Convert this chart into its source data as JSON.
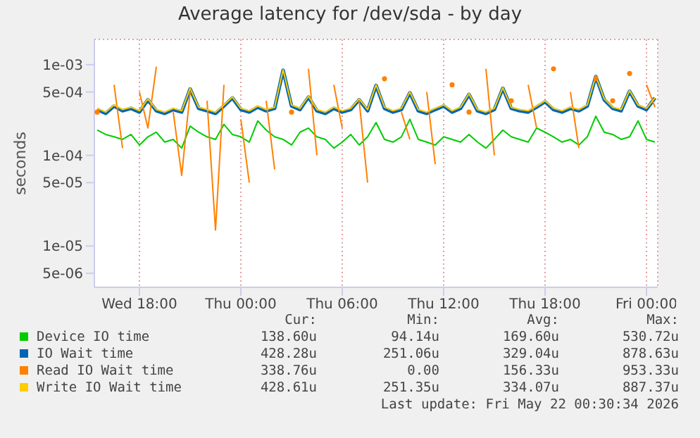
{
  "chart_data": {
    "type": "line",
    "title": "Average latency for /dev/sda - by day",
    "ylabel": "seconds",
    "log": true,
    "grid": true,
    "legend": "bottom",
    "x": [
      "2026-05-20T15:30",
      "2026-05-20T16:00",
      "2026-05-20T16:30",
      "2026-05-20T17:00",
      "2026-05-20T17:30",
      "2026-05-20T18:00",
      "2026-05-20T18:30",
      "2026-05-20T19:00",
      "2026-05-20T19:30",
      "2026-05-20T20:00",
      "2026-05-20T20:30",
      "2026-05-20T21:00",
      "2026-05-20T21:30",
      "2026-05-20T22:00",
      "2026-05-20T22:30",
      "2026-05-20T23:00",
      "2026-05-20T23:30",
      "2026-05-21T00:00",
      "2026-05-21T00:30",
      "2026-05-21T01:00",
      "2026-05-21T01:30",
      "2026-05-21T02:00",
      "2026-05-21T02:30",
      "2026-05-21T03:00",
      "2026-05-21T03:30",
      "2026-05-21T04:00",
      "2026-05-21T04:30",
      "2026-05-21T05:00",
      "2026-05-21T05:30",
      "2026-05-21T06:00",
      "2026-05-21T06:30",
      "2026-05-21T07:00",
      "2026-05-21T07:30",
      "2026-05-21T08:00",
      "2026-05-21T08:30",
      "2026-05-21T09:00",
      "2026-05-21T09:30",
      "2026-05-21T10:00",
      "2026-05-21T10:30",
      "2026-05-21T11:00",
      "2026-05-21T11:30",
      "2026-05-21T12:00",
      "2026-05-21T12:30",
      "2026-05-21T13:00",
      "2026-05-21T13:30",
      "2026-05-21T14:00",
      "2026-05-21T14:30",
      "2026-05-21T15:00",
      "2026-05-21T15:30",
      "2026-05-21T16:00",
      "2026-05-21T16:30",
      "2026-05-21T17:00",
      "2026-05-21T17:30",
      "2026-05-21T18:00",
      "2026-05-21T18:30",
      "2026-05-21T19:00",
      "2026-05-21T19:30",
      "2026-05-21T20:00",
      "2026-05-21T20:30",
      "2026-05-21T21:00",
      "2026-05-21T21:30",
      "2026-05-21T22:00",
      "2026-05-21T22:30",
      "2026-05-21T23:00",
      "2026-05-21T23:30",
      "2026-05-22T00:00",
      "2026-05-22T00:30"
    ],
    "xlim": [
      "2026-05-20T15:20",
      "2026-05-22T00:40"
    ],
    "xticks": [
      {
        "value": "2026-05-20T18:00",
        "label": "Wed 18:00"
      },
      {
        "value": "2026-05-21T00:00",
        "label": "Thu 00:00"
      },
      {
        "value": "2026-05-21T06:00",
        "label": "Thu 06:00"
      },
      {
        "value": "2026-05-21T12:00",
        "label": "Thu 12:00"
      },
      {
        "value": "2026-05-21T18:00",
        "label": "Thu 18:00"
      },
      {
        "value": "2026-05-22T00:00",
        "label": "Fri 00:00"
      }
    ],
    "ylim": [
      3.5e-06,
      0.0019
    ],
    "yticks": [
      {
        "value": 5e-06,
        "label": "5e-06"
      },
      {
        "value": 1e-05,
        "label": "1e-05"
      },
      {
        "value": 5e-05,
        "label": "5e-05"
      },
      {
        "value": 0.0001,
        "label": "1e-04"
      },
      {
        "value": 0.0005,
        "label": "5e-04"
      },
      {
        "value": 0.001,
        "label": "1e-03"
      }
    ],
    "series": [
      {
        "name": "Device IO time",
        "color": "#00cc00",
        "values": [
          0.00019,
          0.00017,
          0.00016,
          0.00015,
          0.00017,
          0.00013,
          0.00016,
          0.00018,
          0.00014,
          0.00015,
          0.00012,
          0.00021,
          0.00018,
          0.00016,
          0.00015,
          0.00022,
          0.00017,
          0.00016,
          0.00014,
          0.00024,
          0.00019,
          0.00016,
          0.00015,
          0.00013,
          0.00018,
          0.0002,
          0.00016,
          0.00015,
          0.00012,
          0.00014,
          0.00017,
          0.00013,
          0.00016,
          0.00023,
          0.00015,
          0.00014,
          0.00016,
          0.00025,
          0.00015,
          0.00014,
          0.00013,
          0.00016,
          0.00015,
          0.00014,
          0.00017,
          0.00014,
          0.00012,
          0.00015,
          0.00019,
          0.00016,
          0.00015,
          0.00014,
          0.0002,
          0.00018,
          0.00016,
          0.00014,
          0.00015,
          0.00013,
          0.00016,
          0.00027,
          0.00018,
          0.00017,
          0.00015,
          0.00016,
          0.00024,
          0.00015,
          0.00014
        ]
      },
      {
        "name": "IO Wait time",
        "color": "#0066b3",
        "values": [
          0.00032,
          0.00029,
          0.00035,
          0.00031,
          0.00033,
          0.0003,
          0.00041,
          0.00031,
          0.00029,
          0.00032,
          0.0003,
          0.00054,
          0.00033,
          0.00031,
          0.00029,
          0.00035,
          0.00043,
          0.00032,
          0.0003,
          0.00034,
          0.00031,
          0.00033,
          0.00087,
          0.00035,
          0.00032,
          0.00044,
          0.00031,
          0.00029,
          0.00033,
          0.0003,
          0.00032,
          0.00041,
          0.00031,
          0.00059,
          0.00033,
          0.0003,
          0.00032,
          0.00049,
          0.00031,
          0.00029,
          0.00032,
          0.00035,
          0.0003,
          0.00033,
          0.00047,
          0.00031,
          0.00029,
          0.00032,
          0.00055,
          0.00033,
          0.00031,
          0.0003,
          0.00034,
          0.00039,
          0.00032,
          0.0003,
          0.00033,
          0.00031,
          0.00035,
          0.00074,
          0.00041,
          0.00033,
          0.00031,
          0.00051,
          0.00035,
          0.00032,
          0.00043
        ]
      },
      {
        "name": "Read IO Wait time",
        "color": "#ff8000",
        "values": [
          0.0003,
          null,
          0.0006,
          0.00012,
          null,
          0.0005,
          0.0002,
          0.00095,
          null,
          0.0003,
          6e-05,
          0.0005,
          null,
          0.0004,
          1.5e-05,
          0.0006,
          null,
          0.00025,
          5e-05,
          null,
          0.0004,
          7e-05,
          null,
          0.0003,
          null,
          0.0009,
          0.0001,
          null,
          0.0006,
          0.0002,
          null,
          0.0004,
          5e-05,
          null,
          0.0007,
          null,
          0.0003,
          0.00015,
          null,
          0.0005,
          8e-05,
          null,
          0.0006,
          null,
          0.0003,
          null,
          0.0009,
          0.0001,
          null,
          0.0004,
          null,
          0.0006,
          0.0002,
          null,
          0.0009,
          null,
          0.0005,
          0.00012,
          null,
          0.0007,
          null,
          0.0004,
          null,
          0.0008,
          null,
          0.0006,
          0.00034
        ]
      },
      {
        "name": "Write IO Wait time",
        "color": "#ffcc00",
        "values": [
          0.00033,
          0.0003,
          0.00036,
          0.00032,
          0.00034,
          0.00031,
          0.00042,
          0.00032,
          0.0003,
          0.00033,
          0.00031,
          0.00055,
          0.00034,
          0.00032,
          0.0003,
          0.00036,
          0.00044,
          0.00033,
          0.00031,
          0.00035,
          0.00032,
          0.00034,
          0.00088,
          0.00036,
          0.00033,
          0.00045,
          0.00032,
          0.0003,
          0.00034,
          0.00031,
          0.00033,
          0.00042,
          0.00032,
          0.0006,
          0.00034,
          0.00031,
          0.00033,
          0.0005,
          0.00032,
          0.0003,
          0.00033,
          0.00036,
          0.00031,
          0.00034,
          0.00048,
          0.00032,
          0.0003,
          0.00033,
          0.00056,
          0.00034,
          0.00032,
          0.00031,
          0.00035,
          0.0004,
          0.00033,
          0.00031,
          0.00034,
          0.00032,
          0.00036,
          0.00075,
          0.00042,
          0.00034,
          0.00032,
          0.00052,
          0.00036,
          0.00033,
          0.00043
        ]
      }
    ],
    "annotations": [
      "Cur:",
      "Min:",
      "Avg:",
      "Max:",
      "138.60u",
      "94.14u",
      "169.60u",
      "530.72u",
      "428.28u",
      "251.06u",
      "329.04u",
      "878.63u",
      "338.76u",
      "0.00",
      "156.33u",
      "953.33u",
      "428.61u",
      "251.35u",
      "334.07u",
      "887.37u",
      "Last update: Fri May 22 00:30:34 2026"
    ]
  }
}
